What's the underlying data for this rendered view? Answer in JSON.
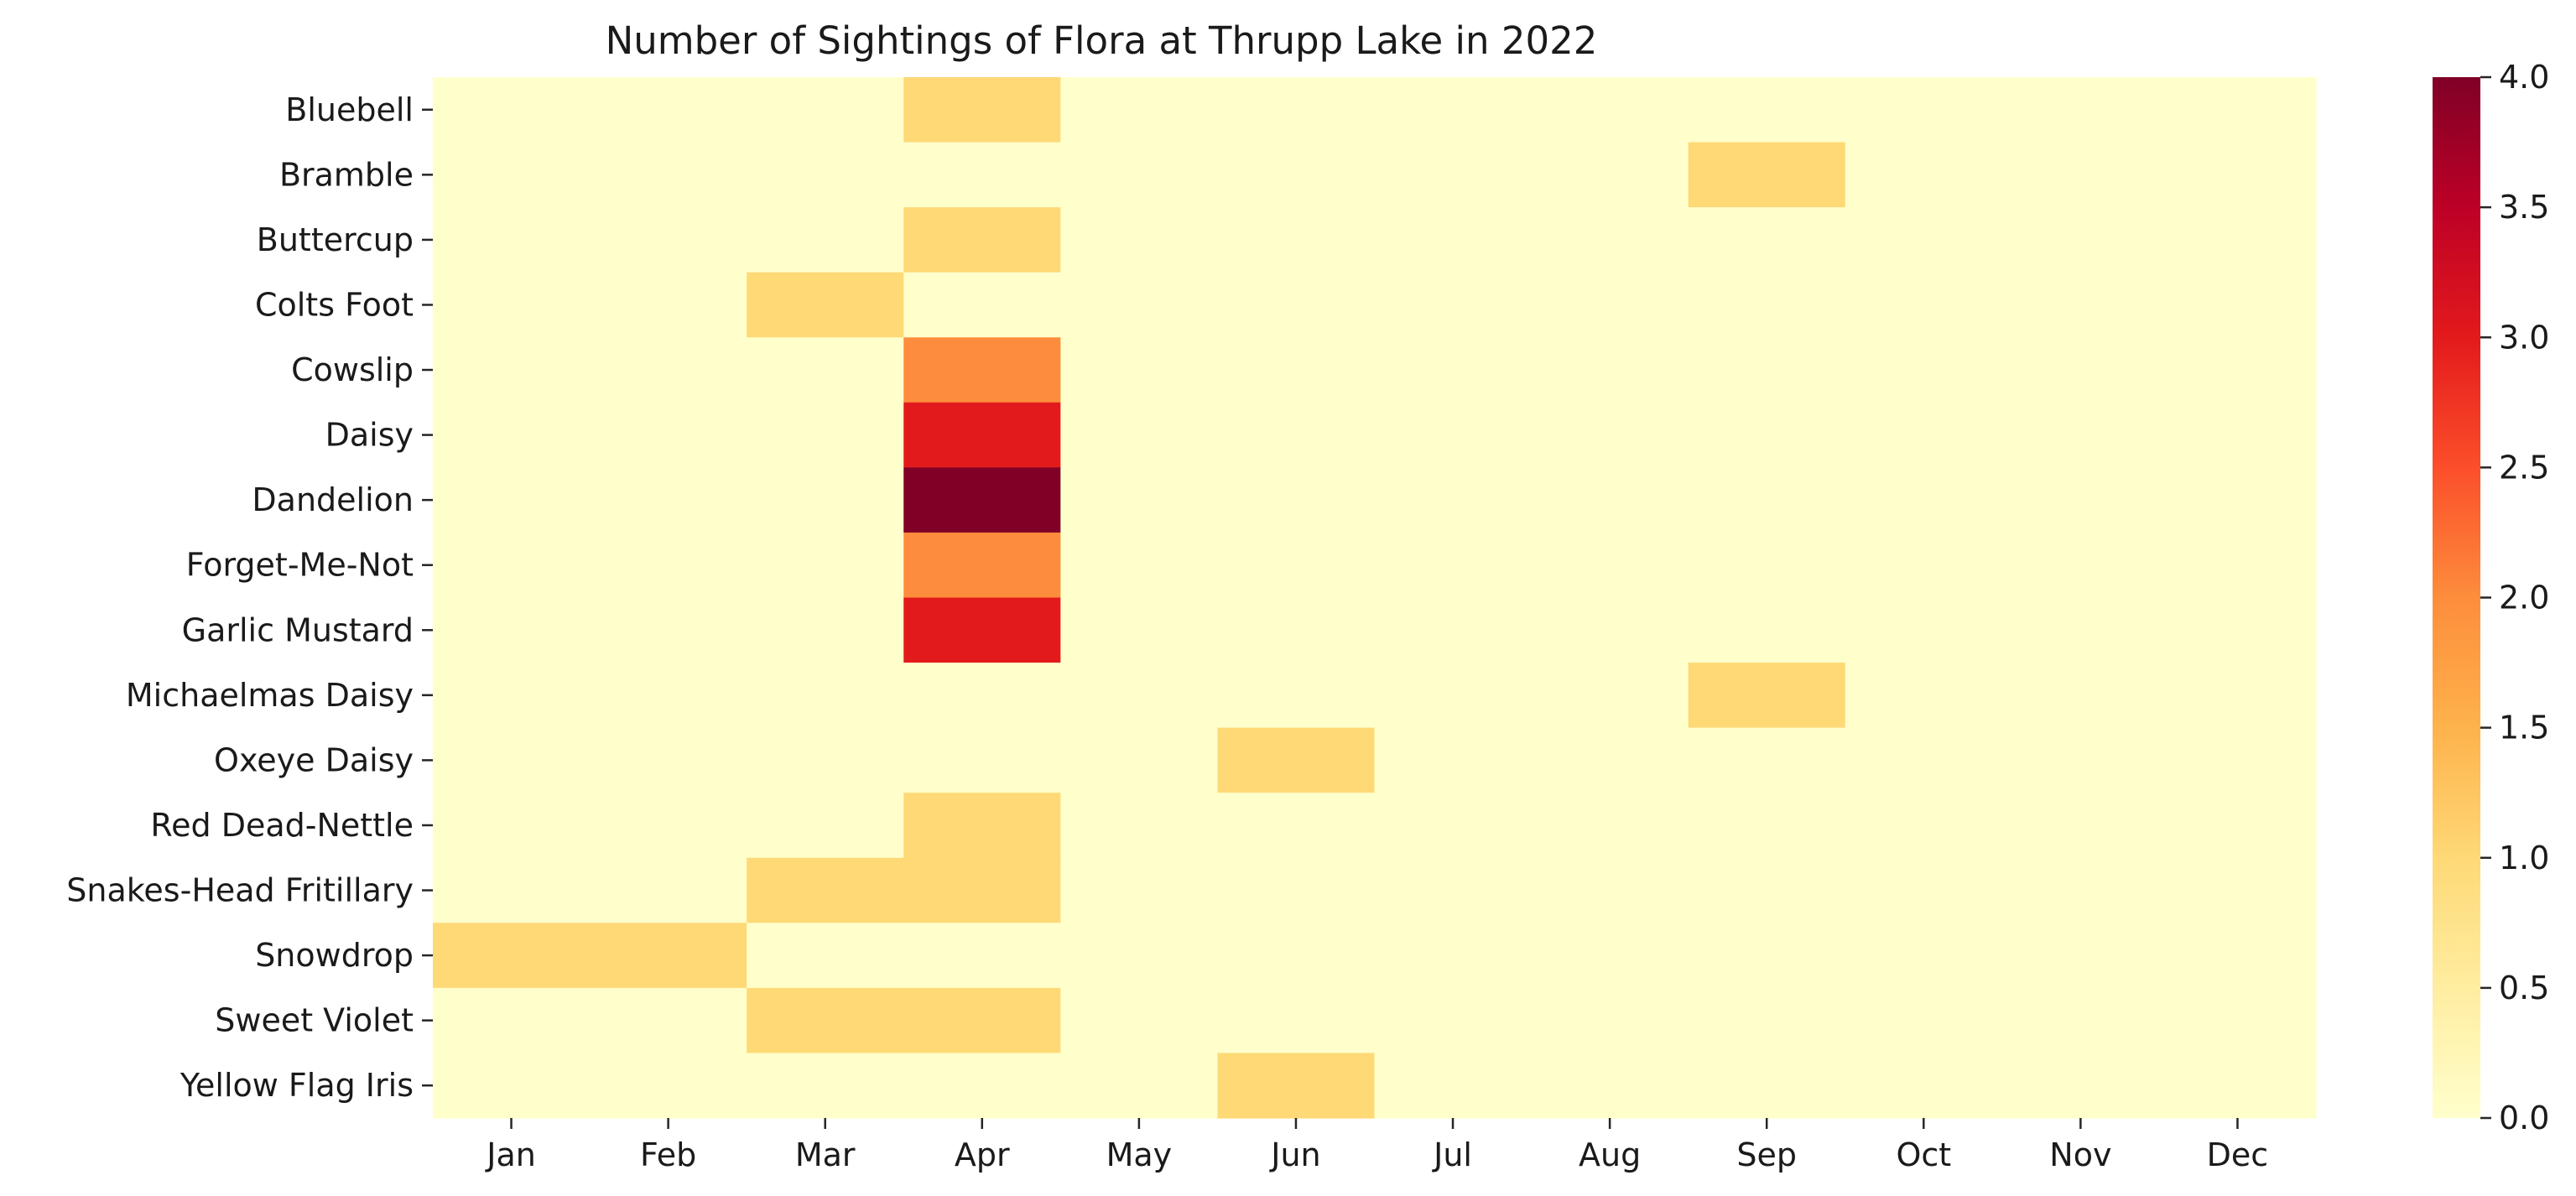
{
  "chart_data": {
    "type": "heatmap",
    "title": "Number of Sightings of Flora at Thrupp Lake in 2022",
    "xlabel": "",
    "ylabel": "",
    "x_categories": [
      "Jan",
      "Feb",
      "Mar",
      "Apr",
      "May",
      "Jun",
      "Jul",
      "Aug",
      "Sep",
      "Oct",
      "Nov",
      "Dec"
    ],
    "y_categories": [
      "Bluebell",
      "Bramble",
      "Buttercup",
      "Colts Foot",
      "Cowslip",
      "Daisy",
      "Dandelion",
      "Forget-Me-Not",
      "Garlic Mustard",
      "Michaelmas Daisy",
      "Oxeye Daisy",
      "Red Dead-Nettle",
      "Snakes-Head Fritillary",
      "Snowdrop",
      "Sweet Violet",
      "Yellow Flag Iris"
    ],
    "values": [
      [
        0,
        0,
        0,
        1,
        0,
        0,
        0,
        0,
        0,
        0,
        0,
        0
      ],
      [
        0,
        0,
        0,
        0,
        0,
        0,
        0,
        0,
        1,
        0,
        0,
        0
      ],
      [
        0,
        0,
        0,
        1,
        0,
        0,
        0,
        0,
        0,
        0,
        0,
        0
      ],
      [
        0,
        0,
        1,
        0,
        0,
        0,
        0,
        0,
        0,
        0,
        0,
        0
      ],
      [
        0,
        0,
        0,
        2,
        0,
        0,
        0,
        0,
        0,
        0,
        0,
        0
      ],
      [
        0,
        0,
        0,
        3,
        0,
        0,
        0,
        0,
        0,
        0,
        0,
        0
      ],
      [
        0,
        0,
        0,
        4,
        0,
        0,
        0,
        0,
        0,
        0,
        0,
        0
      ],
      [
        0,
        0,
        0,
        2,
        0,
        0,
        0,
        0,
        0,
        0,
        0,
        0
      ],
      [
        0,
        0,
        0,
        3,
        0,
        0,
        0,
        0,
        0,
        0,
        0,
        0
      ],
      [
        0,
        0,
        0,
        0,
        0,
        0,
        0,
        0,
        1,
        0,
        0,
        0
      ],
      [
        0,
        0,
        0,
        0,
        0,
        1,
        0,
        0,
        0,
        0,
        0,
        0
      ],
      [
        0,
        0,
        0,
        1,
        0,
        0,
        0,
        0,
        0,
        0,
        0,
        0
      ],
      [
        0,
        0,
        1,
        1,
        0,
        0,
        0,
        0,
        0,
        0,
        0,
        0
      ],
      [
        1,
        1,
        0,
        0,
        0,
        0,
        0,
        0,
        0,
        0,
        0,
        0
      ],
      [
        0,
        0,
        1,
        1,
        0,
        0,
        0,
        0,
        0,
        0,
        0,
        0
      ],
      [
        0,
        0,
        0,
        0,
        0,
        1,
        0,
        0,
        0,
        0,
        0,
        0
      ]
    ],
    "colorbar": {
      "range": [
        0,
        4
      ],
      "ticks": [
        "0.0",
        "0.5",
        "1.0",
        "1.5",
        "2.0",
        "2.5",
        "3.0",
        "3.5",
        "4.0"
      ],
      "colors": [
        "#ffffcc",
        "#ffeda0",
        "#fed976",
        "#feb24c",
        "#fd8d3c",
        "#fc4e2a",
        "#e31a1c",
        "#bd0026",
        "#800026"
      ]
    },
    "grid": false,
    "legend": "colorbar-right"
  }
}
